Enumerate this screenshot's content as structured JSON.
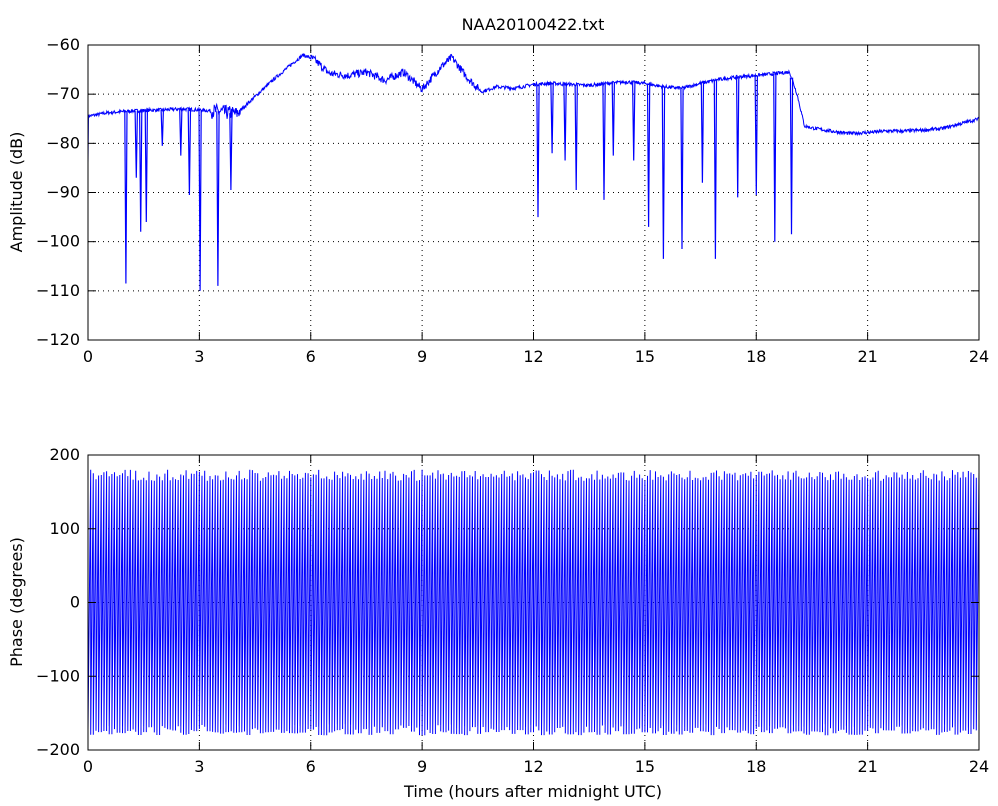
{
  "chart_data": [
    {
      "type": "line",
      "title": "NAA20100422.txt",
      "xlabel": "",
      "ylabel": "Amplitude (dB)",
      "xlim": [
        0,
        24
      ],
      "ylim": [
        -120,
        -60
      ],
      "xticks": [
        0,
        3,
        6,
        9,
        12,
        15,
        18,
        21,
        24
      ],
      "xtick_labels": [
        "0",
        "3",
        "6",
        "9",
        "12",
        "15",
        "18",
        "21",
        "24"
      ],
      "yticks": [
        -120,
        -110,
        -100,
        -90,
        -80,
        -70,
        -60
      ],
      "ytick_labels": [
        "−120",
        "−110",
        "−100",
        "−90",
        "−80",
        "−70",
        "−60"
      ],
      "grid": true,
      "color": "#0000ff",
      "series": [
        {
          "x": [
            0,
            0.5,
            1.0,
            1.5,
            2.0,
            2.5,
            3.0,
            3.5,
            4.0,
            4.5,
            5.0,
            5.5,
            5.8,
            6.1,
            6.5,
            7.0,
            7.5,
            8.0,
            8.5,
            9.0,
            9.5,
            9.8,
            10.2,
            10.6,
            11.0,
            11.5,
            12.0,
            12.5,
            13.0,
            13.5,
            14.0,
            14.5,
            15.0,
            15.5,
            16.0,
            16.5,
            17.0,
            17.5,
            18.0,
            18.5,
            18.9,
            19.1,
            19.3,
            19.6,
            20.0,
            20.5,
            21.0,
            21.5,
            22.0,
            22.5,
            23.0,
            23.5,
            24.0
          ],
          "values": [
            -74.5,
            -73.8,
            -73.5,
            -73.3,
            -73.2,
            -73.0,
            -73.2,
            -73.5,
            -74.0,
            -70.5,
            -67.0,
            -63.8,
            -62.0,
            -63.0,
            -65.8,
            -66.2,
            -65.5,
            -67.2,
            -65.5,
            -69.0,
            -64.5,
            -62.5,
            -66.5,
            -69.5,
            -68.5,
            -68.8,
            -68.0,
            -67.8,
            -68.0,
            -68.2,
            -67.8,
            -67.5,
            -67.8,
            -68.5,
            -68.8,
            -67.8,
            -67.0,
            -66.5,
            -66.2,
            -65.8,
            -65.5,
            -70.0,
            -76.5,
            -77.0,
            -77.5,
            -78.0,
            -77.8,
            -77.5,
            -77.5,
            -77.3,
            -77.0,
            -76.0,
            -75.0
          ]
        }
      ],
      "dips": [
        {
          "x": 1.02,
          "depth": -108.5
        },
        {
          "x": 1.3,
          "depth": -87.0
        },
        {
          "x": 1.42,
          "depth": -98.0
        },
        {
          "x": 1.57,
          "depth": -96.0
        },
        {
          "x": 2.0,
          "depth": -80.5
        },
        {
          "x": 2.5,
          "depth": -82.5
        },
        {
          "x": 2.73,
          "depth": -90.5
        },
        {
          "x": 3.02,
          "depth": -110.0
        },
        {
          "x": 3.5,
          "depth": -109.0
        },
        {
          "x": 3.85,
          "depth": -89.5
        },
        {
          "x": 12.12,
          "depth": -95.0
        },
        {
          "x": 12.5,
          "depth": -82.0
        },
        {
          "x": 12.85,
          "depth": -83.5
        },
        {
          "x": 13.15,
          "depth": -89.5
        },
        {
          "x": 13.9,
          "depth": -91.5
        },
        {
          "x": 14.15,
          "depth": -82.5
        },
        {
          "x": 14.7,
          "depth": -83.5
        },
        {
          "x": 15.1,
          "depth": -97.0
        },
        {
          "x": 15.5,
          "depth": -103.5
        },
        {
          "x": 16.0,
          "depth": -101.5
        },
        {
          "x": 16.55,
          "depth": -88.0
        },
        {
          "x": 16.9,
          "depth": -103.5
        },
        {
          "x": 17.5,
          "depth": -91.0
        },
        {
          "x": 18.0,
          "depth": -90.5
        },
        {
          "x": 18.5,
          "depth": -100.0
        },
        {
          "x": 18.95,
          "depth": -98.5
        }
      ]
    },
    {
      "type": "line",
      "title": "",
      "xlabel": "Time (hours after midnight UTC)",
      "ylabel": "Phase (degrees)",
      "xlim": [
        0,
        24
      ],
      "ylim": [
        -200,
        200
      ],
      "xticks": [
        0,
        3,
        6,
        9,
        12,
        15,
        18,
        21,
        24
      ],
      "xtick_labels": [
        "0",
        "3",
        "6",
        "9",
        "12",
        "15",
        "18",
        "21",
        "24"
      ],
      "yticks": [
        -200,
        -100,
        0,
        100,
        200
      ],
      "ytick_labels": [
        "−200",
        "−100",
        "0",
        "100",
        "200"
      ],
      "grid": true,
      "color": "#0000ff",
      "series": [
        {
          "description_range": [
            -180,
            180
          ],
          "wrap_rate_per_hour": 14
        }
      ]
    }
  ]
}
